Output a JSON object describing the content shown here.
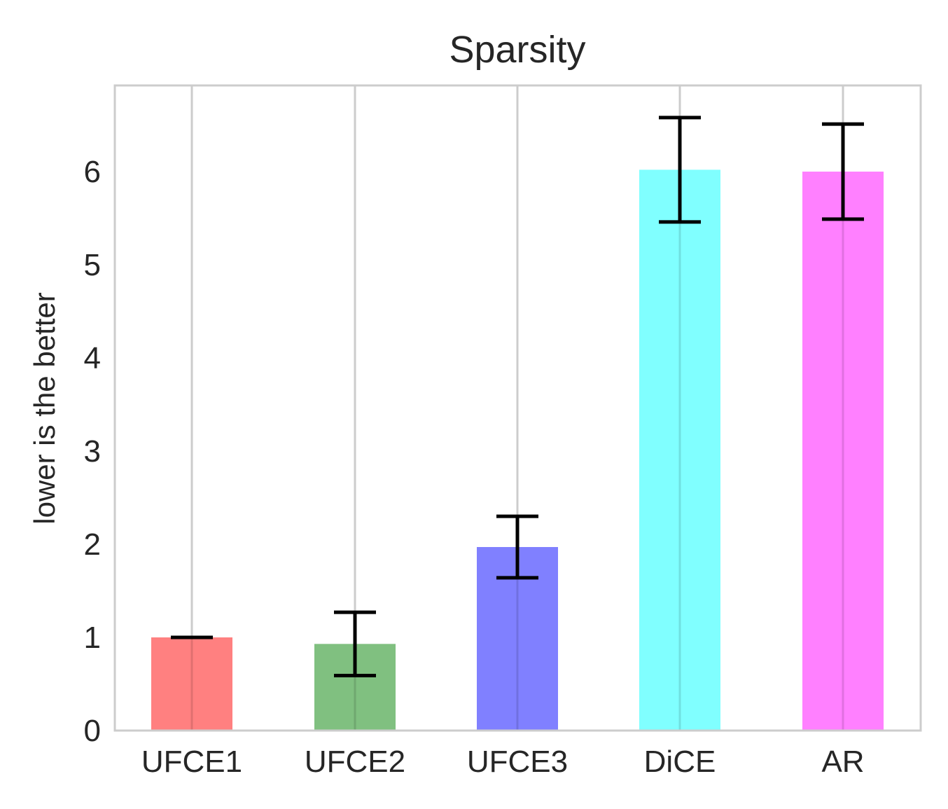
{
  "chart_data": {
    "type": "bar",
    "title": "Sparsity",
    "xlabel": "",
    "ylabel": "lower is the better",
    "categories": [
      "UFCE1",
      "UFCE2",
      "UFCE3",
      "DiCE",
      "AR"
    ],
    "values": [
      1.0,
      0.93,
      1.97,
      6.02,
      6.0
    ],
    "error": [
      0.0,
      0.34,
      0.33,
      0.56,
      0.51
    ],
    "colors": [
      "#ff8080",
      "#80c080",
      "#8080ff",
      "#80ffff",
      "#ff80ff"
    ],
    "yticks": [
      "0",
      "1",
      "2",
      "3",
      "4",
      "5",
      "6"
    ],
    "ylim": [
      0,
      6.9
    ],
    "grid": "vertical"
  }
}
